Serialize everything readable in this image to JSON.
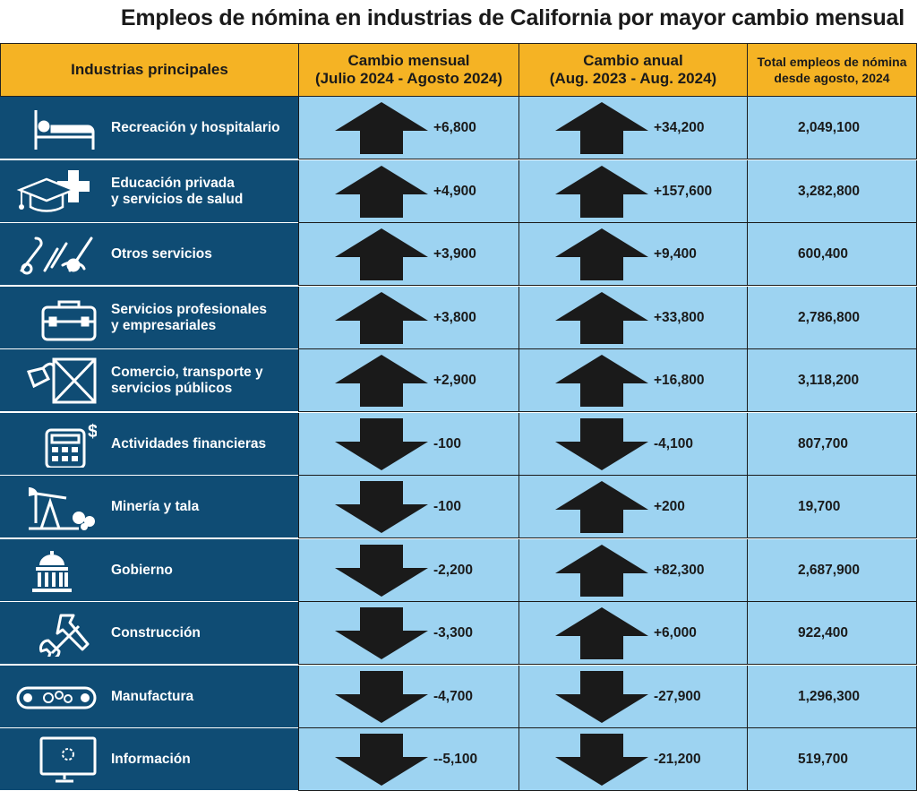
{
  "title": "Empleos de nómina en industrias de California por mayor cambio mensual",
  "headers": {
    "industry": "Industrias principales",
    "monthly": "Cambio mensual\n(Julio 2024 - Agosto 2024)",
    "annual": "Cambio anual\n(Aug. 2023 - Aug. 2024)",
    "total": "Total empleos de nómina\ndesde agosto, 2024"
  },
  "colors": {
    "header_bg": "#f5b324",
    "industry_bg": "#0f4c74",
    "data_bg": "#9dd3f1",
    "arrow": "#1a1a1a"
  },
  "chart_data": {
    "type": "table",
    "title": "Empleos de nómina en industrias de California por mayor cambio mensual",
    "columns": [
      "Industrias principales",
      "Cambio mensual (Julio 2024 - Agosto 2024)",
      "Cambio anual (Aug. 2023 - Aug. 2024)",
      "Total empleos de nómina desde agosto, 2024"
    ],
    "rows": [
      {
        "industry": "Recreación y hospitalario",
        "icon": "bed-icon",
        "monthly": "+6,800",
        "monthly_value": 6800,
        "monthly_dir": "up",
        "annual": "+34,200",
        "annual_value": 34200,
        "annual_dir": "up",
        "total": "2,049,100",
        "total_value": 2049100
      },
      {
        "industry": "Educación privada\ny  servicios de salud",
        "icon": "graduation-cap-medical-cross-icon",
        "monthly": "+4,900",
        "monthly_value": 4900,
        "monthly_dir": "up",
        "annual": "+157,600",
        "annual_value": 157600,
        "annual_dir": "up",
        "total": "3,282,800",
        "total_value": 3282800
      },
      {
        "industry": "Otros servicios",
        "icon": "tools-scissors-icon",
        "monthly": "+3,900",
        "monthly_value": 3900,
        "monthly_dir": "up",
        "annual": "+9,400",
        "annual_value": 9400,
        "annual_dir": "up",
        "total": "600,400",
        "total_value": 600400
      },
      {
        "industry": "Servicios profesionales\ny empresariales",
        "icon": "briefcase-icon",
        "monthly": "+3,800",
        "monthly_value": 3800,
        "monthly_dir": "up",
        "annual": "+33,800",
        "annual_value": 33800,
        "annual_dir": "up",
        "total": "2,786,800",
        "total_value": 2786800
      },
      {
        "industry": "Comercio, transporte y\nservicios públicos",
        "icon": "shipping-crate-tag-icon",
        "monthly": "+2,900",
        "monthly_value": 2900,
        "monthly_dir": "up",
        "annual": "+16,800",
        "annual_value": 16800,
        "annual_dir": "up",
        "total": "3,118,200",
        "total_value": 3118200
      },
      {
        "industry": "Actividades financieras",
        "icon": "calculator-dollar-icon",
        "monthly": "-100",
        "monthly_value": -100,
        "monthly_dir": "down",
        "annual": "-4,100",
        "annual_value": -4100,
        "annual_dir": "down",
        "total": "807,700",
        "total_value": 807700
      },
      {
        "industry": "Minería y tala",
        "icon": "oil-pump-logs-icon",
        "monthly": "-100",
        "monthly_value": -100,
        "monthly_dir": "down",
        "annual": "+200",
        "annual_value": 200,
        "annual_dir": "up",
        "total": "19,700",
        "total_value": 19700
      },
      {
        "industry": "Gobierno",
        "icon": "capitol-building-icon",
        "monthly": "-2,200",
        "monthly_value": -2200,
        "monthly_dir": "down",
        "annual": "+82,300",
        "annual_value": 82300,
        "annual_dir": "up",
        "total": "2,687,900",
        "total_value": 2687900
      },
      {
        "industry": "Construcción",
        "icon": "hammer-wrench-icon",
        "monthly": "-3,300",
        "monthly_value": -3300,
        "monthly_dir": "down",
        "annual": "+6,000",
        "annual_value": 6000,
        "annual_dir": "up",
        "total": "922,400",
        "total_value": 922400
      },
      {
        "industry": "Manufactura",
        "icon": "conveyor-gears-icon",
        "monthly": "-4,700",
        "monthly_value": -4700,
        "monthly_dir": "down",
        "annual": "-27,900",
        "annual_value": -27900,
        "annual_dir": "down",
        "total": "1,296,300",
        "total_value": 1296300
      },
      {
        "industry": "Información",
        "icon": "computer-monitor-icon",
        "monthly": "--5,100",
        "monthly_value": -5100,
        "monthly_dir": "down",
        "annual": "-21,200",
        "annual_value": -21200,
        "annual_dir": "down",
        "total": "519,700",
        "total_value": 519700
      }
    ]
  }
}
